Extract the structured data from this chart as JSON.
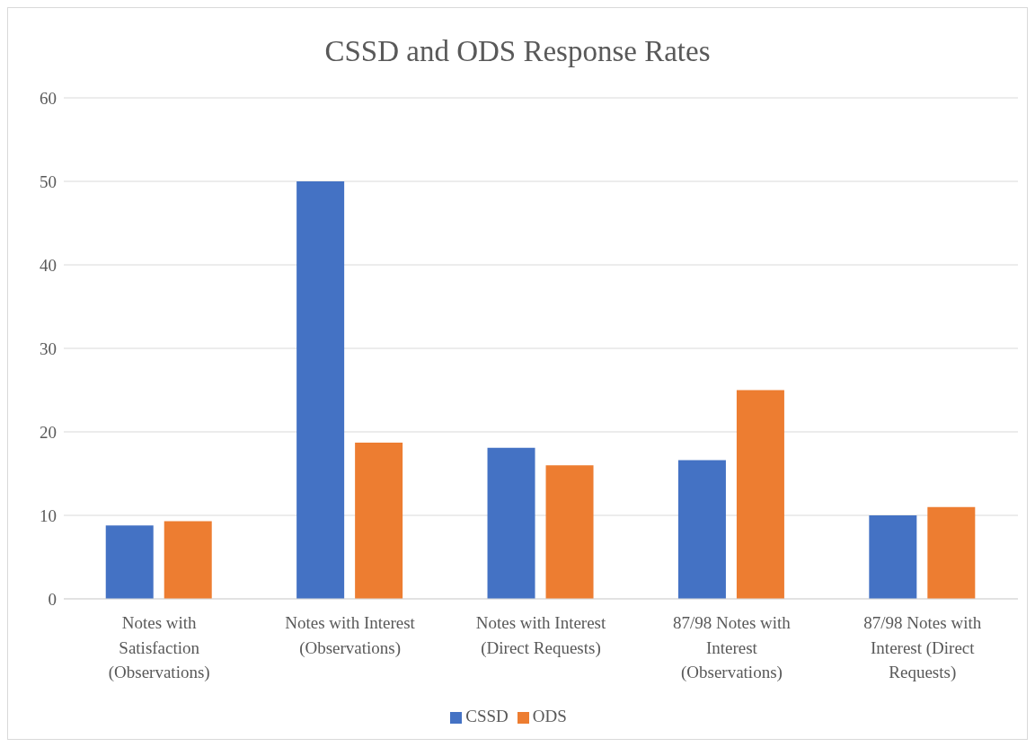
{
  "chart_data": {
    "type": "bar",
    "title": "CSSD and ODS Response Rates",
    "categories": [
      "Notes with Satisfaction (Observations)",
      "Notes with Interest (Observations)",
      "Notes with Interest (Direct Requests)",
      "87/98 Notes with Interest (Observations)",
      "87/98 Notes with Interest (Direct Requests)"
    ],
    "series": [
      {
        "name": "CSSD",
        "color": "#4472c4",
        "values": [
          8.8,
          50,
          18.1,
          16.6,
          10
        ]
      },
      {
        "name": "ODS",
        "color": "#ed7d31",
        "values": [
          9.3,
          18.7,
          16,
          25,
          11
        ]
      }
    ],
    "ylim": [
      0,
      60
    ],
    "yticks": [
      0,
      10,
      20,
      30,
      40,
      50,
      60
    ],
    "grid": "y",
    "legend": "bottom"
  }
}
